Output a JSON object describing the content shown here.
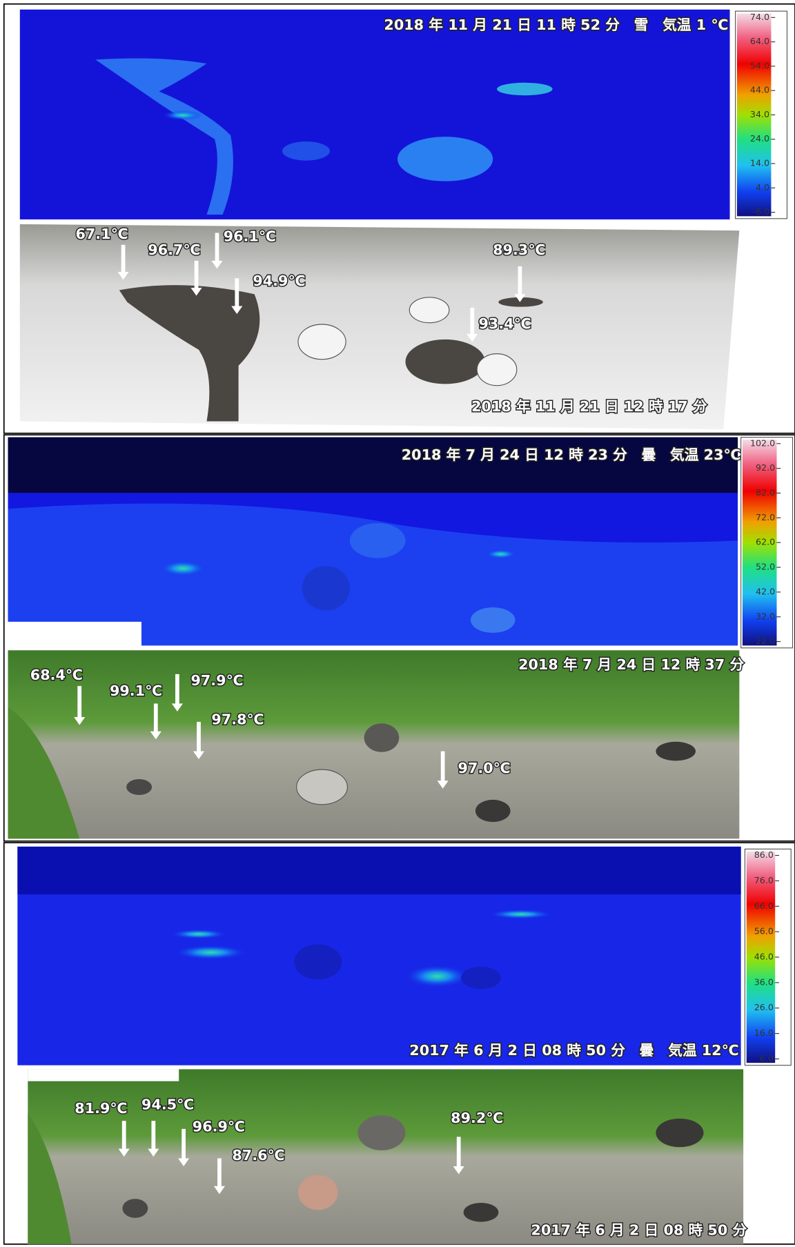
{
  "panels": [
    {
      "thermal": {
        "caption": "2018 年 11 月 21 日 11 時 52 分　雪　気温 1 ℃",
        "scale": [
          "74.0",
          "64.0",
          "54.0",
          "44.0",
          "34.0",
          "24.0",
          "14.0",
          "4.0",
          "-6.0"
        ]
      },
      "photo": {
        "caption": "2018 年 11 月 21 日 12 時 17 分",
        "points": [
          "67.1℃",
          "96.7℃",
          "96.1℃",
          "94.9℃",
          "89.3℃",
          "93.4℃"
        ]
      }
    },
    {
      "thermal": {
        "caption": "2018 年 7 月 24 日 12 時 23 分　曇　気温 23℃",
        "scale": [
          "102.0",
          "92.0",
          "82.0",
          "72.0",
          "62.0",
          "52.0",
          "42.0",
          "32.0",
          "22.0"
        ]
      },
      "photo": {
        "caption": "2018 年 7 月 24 日 12 時 37 分",
        "points": [
          "68.4℃",
          "99.1℃",
          "97.9℃",
          "97.8℃",
          "97.0℃"
        ]
      }
    },
    {
      "thermal": {
        "caption": "2017 年 6 月 2 日 08 時 50 分　曇　気温 12℃",
        "scale": [
          "86.0",
          "76.0",
          "66.0",
          "56.0",
          "46.0",
          "36.0",
          "26.0",
          "16.0",
          "6.0"
        ]
      },
      "photo": {
        "caption": "2017 年 6 月 2 日 08 時 50 分",
        "points": [
          "81.9℃",
          "94.5℃",
          "96.9℃",
          "87.6℃",
          "89.2℃"
        ]
      }
    }
  ]
}
